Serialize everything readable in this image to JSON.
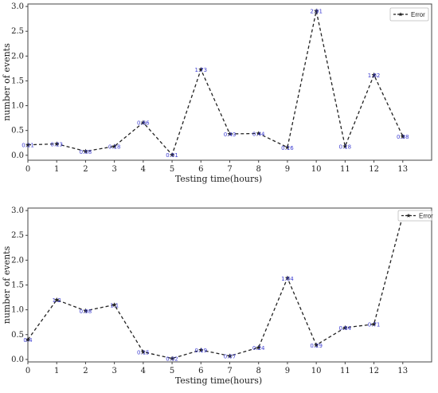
{
  "chart_data": [
    {
      "type": "line",
      "title": "",
      "xlabel": "Testing time(hours)",
      "ylabel": "number of events",
      "x": [
        0,
        1,
        2,
        3,
        4,
        5,
        6,
        7,
        8,
        9,
        10,
        11,
        12,
        13
      ],
      "xticks": [
        "0",
        "1",
        "2",
        "3",
        "4",
        "5",
        "6",
        "7",
        "8",
        "9",
        "10",
        "11",
        "12",
        "13"
      ],
      "yticks": [
        "0.0",
        "0.5",
        "1.0",
        "1.5",
        "2.0",
        "2.5",
        "3.0"
      ],
      "xlim": [
        0,
        14
      ],
      "ylim": [
        -0.1,
        3.05
      ],
      "grid": false,
      "legend_position": "top-right",
      "series": [
        {
          "name": "Error",
          "values": [
            0.21,
            0.23,
            0.08,
            0.18,
            0.66,
            0.01,
            1.73,
            0.43,
            0.44,
            0.16,
            2.91,
            0.18,
            1.62,
            0.38
          ],
          "labels": [
            "0.21",
            "0.23",
            "0.08",
            "0.18",
            "0.66",
            "0.01",
            "1.73",
            "0.43",
            "0.44",
            "0.16",
            "2.91",
            "0.18",
            "1.62",
            "0.38"
          ],
          "color": "#222222",
          "line_style": "dashed",
          "marker": "star"
        }
      ]
    },
    {
      "type": "line",
      "title": "",
      "xlabel": "Testing time(hours)",
      "ylabel": "number of events",
      "x": [
        0,
        1,
        2,
        3,
        4,
        5,
        6,
        7,
        8,
        9,
        10,
        11,
        12,
        13
      ],
      "xticks": [
        "0",
        "1",
        "2",
        "3",
        "4",
        "5",
        "6",
        "7",
        "8",
        "9",
        "10",
        "11",
        "12",
        "13"
      ],
      "yticks": [
        "0.0",
        "0.5",
        "1.0",
        "1.5",
        "2.0",
        "2.5",
        "3.0"
      ],
      "xlim": [
        0,
        14
      ],
      "ylim": [
        -0.05,
        3.05
      ],
      "grid": false,
      "legend_position": "top-right",
      "series": [
        {
          "name": "Error",
          "values": [
            0.4,
            1.2,
            0.98,
            1.1,
            0.15,
            0.02,
            0.19,
            0.07,
            0.24,
            1.64,
            0.29,
            0.64,
            0.71,
            2.9
          ],
          "labels": [
            "0.4",
            "1.2",
            "0.98",
            "1.1",
            "0.15",
            "0.02",
            "0.19",
            "0.07",
            "0.24",
            "1.64",
            "0.29",
            "0.64",
            "0.71",
            "2.9"
          ],
          "color": "#222222",
          "line_style": "dashed",
          "marker": "star"
        }
      ]
    }
  ]
}
